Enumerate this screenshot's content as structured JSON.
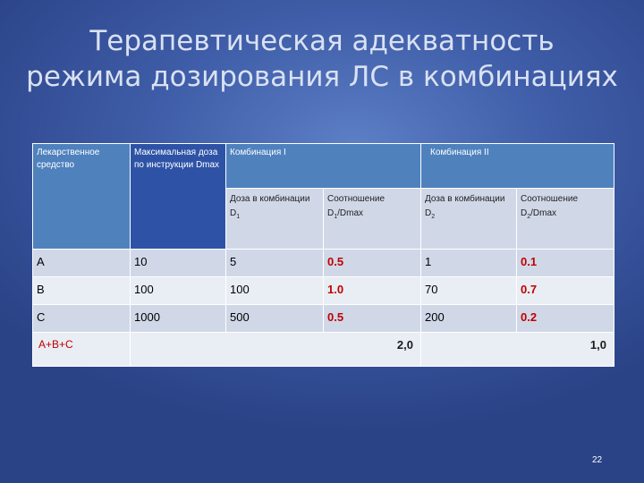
{
  "slide": {
    "title_line1": "Терапевтическая адекватность",
    "title_line2": "режима дозирования ЛС в комбинациях",
    "page_number": "22"
  },
  "table": {
    "headers": {
      "drug": "Лекарственное средство",
      "max_dose": "Максимальная доза по инструкции Dmax",
      "combo1": "Комбинация I",
      "combo2": "Комбинация II",
      "dose1_prefix": "Доза в комбинации D",
      "dose1_sub": "1",
      "ratio1_prefix": "Соотношение D",
      "ratio1_sub": "1",
      "ratio1_suffix": "/Dmax",
      "dose2_prefix": "Доза в комбинации D",
      "dose2_sub": "2",
      "ratio2_prefix": "Соотношение D",
      "ratio2_sub": "2",
      "ratio2_suffix": "/Dmax"
    },
    "rows": [
      {
        "drug": "A",
        "dmax": "10",
        "d1": "5",
        "r1": "0.5",
        "d2": "1",
        "r2": "0.1"
      },
      {
        "drug": "B",
        "dmax": "100",
        "d1": "100",
        "r1": "1.0",
        "d2": "70",
        "r2": "0.7"
      },
      {
        "drug": "C",
        "dmax": "1000",
        "d1": "500",
        "r1": "0.5",
        "d2": "200",
        "r2": "0.2"
      }
    ],
    "sum": {
      "label": "A+B+C",
      "combo1": "2,0",
      "combo2": "1,0"
    }
  },
  "colors": {
    "header": "#4f81bd",
    "row_band": "#d0d8e8",
    "row_light": "#e9edf4",
    "accent_red": "#c00000"
  }
}
